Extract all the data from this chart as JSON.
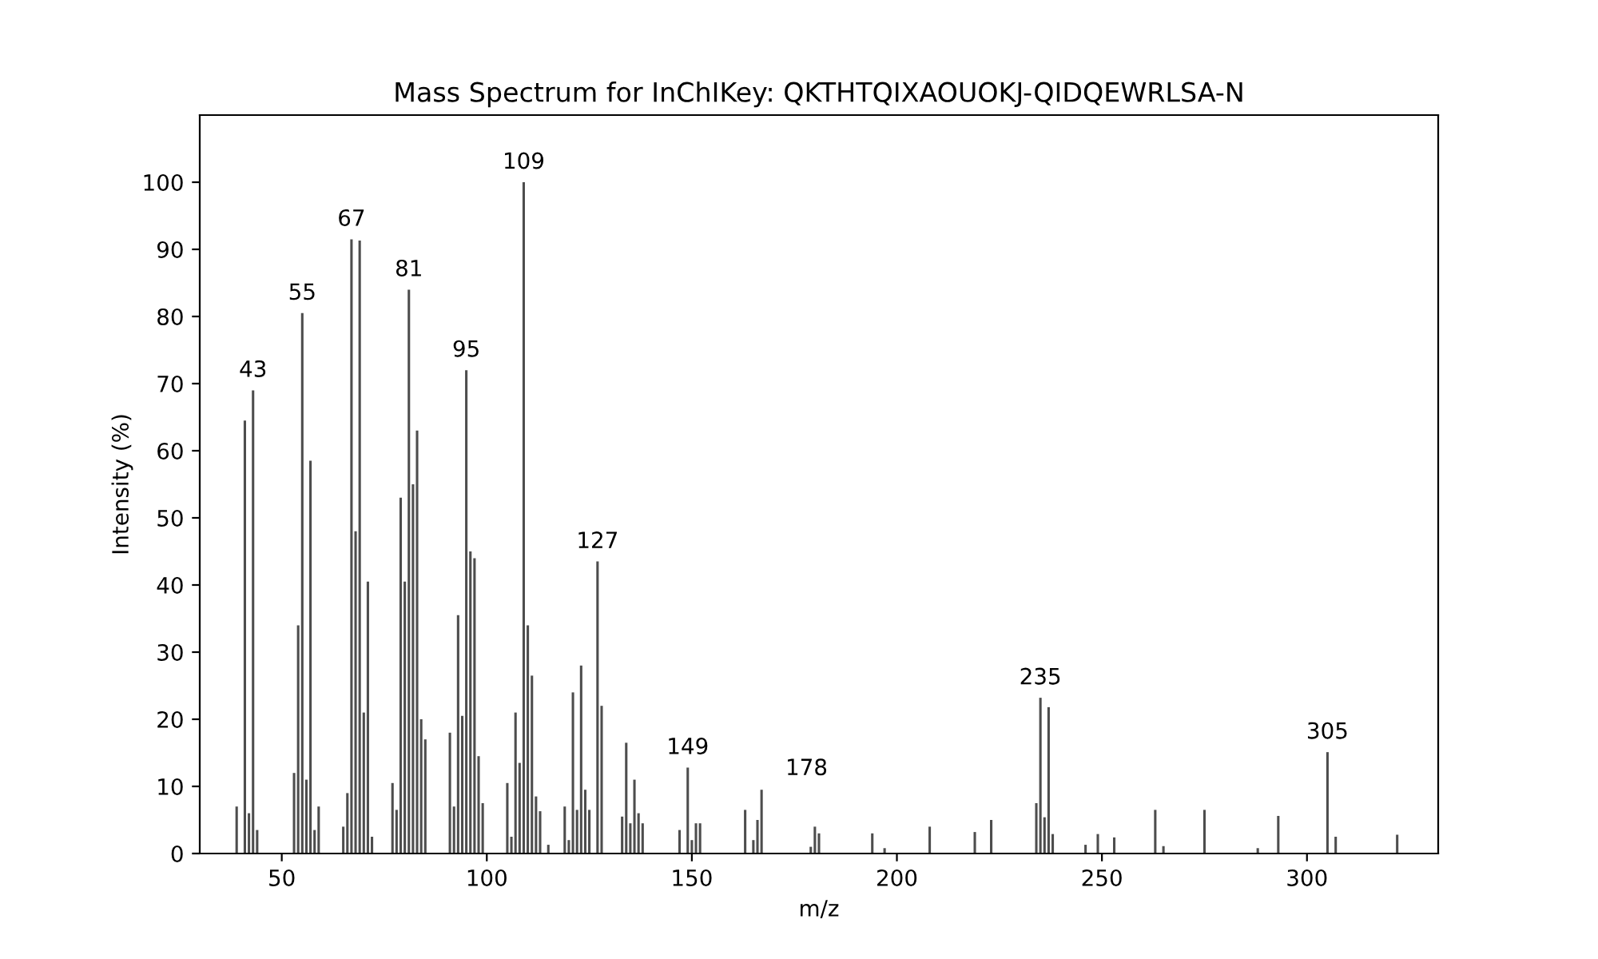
{
  "chart_data": {
    "type": "bar",
    "title": "Mass Spectrum for InChIKey: QKTHTQIXAOUOKJ-QIDQEWRLSA-N",
    "xlabel": "m/z",
    "ylabel": "Intensity (%)",
    "x": [
      39,
      41,
      42,
      43,
      44,
      53,
      54,
      55,
      56,
      57,
      58,
      59,
      65,
      66,
      67,
      68,
      69,
      70,
      71,
      72,
      77,
      78,
      79,
      80,
      81,
      82,
      83,
      84,
      85,
      91,
      92,
      93,
      94,
      95,
      96,
      97,
      98,
      99,
      105,
      106,
      107,
      108,
      109,
      110,
      111,
      112,
      113,
      115,
      119,
      120,
      121,
      122,
      123,
      124,
      125,
      127,
      128,
      133,
      134,
      135,
      136,
      137,
      138,
      147,
      149,
      150,
      151,
      152,
      163,
      165,
      166,
      167,
      179,
      180,
      181,
      194,
      197,
      208,
      219,
      223,
      234,
      235,
      236,
      237,
      238,
      246,
      249,
      253,
      263,
      265,
      275,
      288,
      293,
      305,
      307,
      322
    ],
    "values": [
      7,
      64.5,
      6,
      69,
      3.5,
      12,
      34,
      80.5,
      11,
      58.5,
      3.5,
      7,
      4,
      9,
      91.5,
      48,
      91.3,
      21,
      40.5,
      2.5,
      10.5,
      6.5,
      53,
      40.5,
      84,
      55,
      63,
      20,
      17,
      18,
      7,
      35.5,
      20.5,
      72,
      45,
      44,
      14.5,
      7.5,
      10.5,
      2.5,
      21,
      13.5,
      100,
      34,
      26.5,
      8.5,
      6.3,
      1.3,
      7,
      2,
      24,
      6.5,
      28,
      9.5,
      6.5,
      43.5,
      22,
      5.5,
      16.5,
      4.5,
      11,
      6,
      4.5,
      3.5,
      12.8,
      2,
      4.5,
      4.5,
      6.5,
      2,
      5,
      9.5,
      1,
      4,
      3,
      3,
      0.8,
      4,
      3.2,
      5,
      7.5,
      23.2,
      5.4,
      21.8,
      2.9,
      1.3,
      2.9,
      2.4,
      6.5,
      1.1,
      6.5,
      0.8,
      5.6,
      15.1,
      2.5,
      2.8
    ],
    "color": "#4d4d4d",
    "annotations": [
      {
        "text": "43",
        "x": 43,
        "y": 69
      },
      {
        "text": "55",
        "x": 55,
        "y": 80.5
      },
      {
        "text": "67",
        "x": 67,
        "y": 91.5
      },
      {
        "text": "81",
        "x": 81,
        "y": 84
      },
      {
        "text": "95",
        "x": 95,
        "y": 72
      },
      {
        "text": "109",
        "x": 109,
        "y": 100
      },
      {
        "text": "127",
        "x": 127,
        "y": 43.5
      },
      {
        "text": "149",
        "x": 149,
        "y": 12.8
      },
      "178",
      {
        "text": "235",
        "x": 235,
        "y": 23.2
      },
      {
        "text": "305",
        "x": 305,
        "y": 15.1
      }
    ],
    "xlim": [
      30,
      332
    ],
    "ylim": [
      0,
      110
    ],
    "xticks": [
      50,
      100,
      150,
      200,
      250,
      300
    ],
    "yticks": [
      0,
      10,
      20,
      30,
      40,
      50,
      60,
      70,
      80,
      90,
      100
    ],
    "grid": false,
    "legend": false
  }
}
